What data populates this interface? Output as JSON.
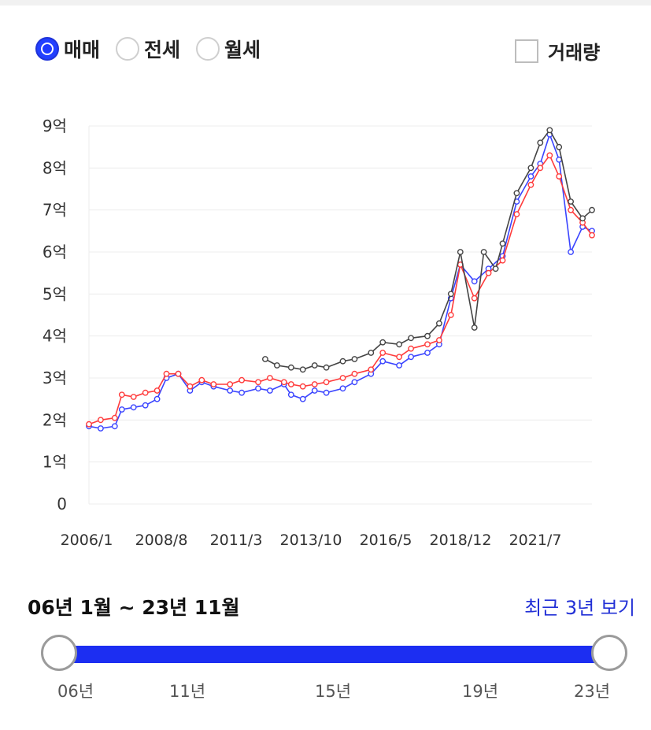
{
  "tabs": [
    {
      "label": "매매",
      "checked": true
    },
    {
      "label": "전세",
      "checked": false
    },
    {
      "label": "월세",
      "checked": false
    }
  ],
  "volume_label": "거래량",
  "range_label": "06년 1월 ~ 23년 11월",
  "recent_label": "최근 3년 보기",
  "slider_ticks": [
    "06년",
    "11년",
    "15년",
    "19년",
    "23년"
  ],
  "colors": {
    "blue": "#3a44ff",
    "red": "#ff3b3b",
    "black": "#444444",
    "accent": "#1c2ef2"
  },
  "chart_data": {
    "type": "line",
    "x_start": "2006-01",
    "x_end": "2023-11",
    "x_tick_labels": [
      "2006/1",
      "2008/8",
      "2011/3",
      "2013/10",
      "2016/5",
      "2018/12",
      "2021/7"
    ],
    "y_tick_labels": [
      "0",
      "1억",
      "2억",
      "3억",
      "4억",
      "5억",
      "6억",
      "7억",
      "8억",
      "9억"
    ],
    "ylim": [
      0,
      9
    ],
    "grid": true,
    "series": [
      {
        "color": "#3a44ff",
        "points": [
          [
            "2006-01",
            1.85
          ],
          [
            "2006-06",
            1.8
          ],
          [
            "2006-12",
            1.85
          ],
          [
            "2007-03",
            2.25
          ],
          [
            "2007-08",
            2.3
          ],
          [
            "2008-01",
            2.35
          ],
          [
            "2008-06",
            2.5
          ],
          [
            "2008-10",
            3.0
          ],
          [
            "2009-03",
            3.1
          ],
          [
            "2009-08",
            2.7
          ],
          [
            "2010-01",
            2.9
          ],
          [
            "2010-06",
            2.8
          ],
          [
            "2011-01",
            2.7
          ],
          [
            "2011-06",
            2.65
          ],
          [
            "2012-01",
            2.75
          ],
          [
            "2012-06",
            2.7
          ],
          [
            "2012-12",
            2.85
          ],
          [
            "2013-03",
            2.6
          ],
          [
            "2013-08",
            2.5
          ],
          [
            "2014-01",
            2.7
          ],
          [
            "2014-06",
            2.65
          ],
          [
            "2015-01",
            2.75
          ],
          [
            "2015-06",
            2.9
          ],
          [
            "2016-01",
            3.1
          ],
          [
            "2016-06",
            3.4
          ],
          [
            "2017-01",
            3.3
          ],
          [
            "2017-06",
            3.5
          ],
          [
            "2018-01",
            3.6
          ],
          [
            "2018-06",
            3.8
          ],
          [
            "2018-11",
            4.9
          ],
          [
            "2019-03",
            5.7
          ],
          [
            "2019-09",
            5.3
          ],
          [
            "2020-03",
            5.6
          ],
          [
            "2020-09",
            5.9
          ],
          [
            "2021-03",
            7.2
          ],
          [
            "2021-09",
            7.8
          ],
          [
            "2022-01",
            8.1
          ],
          [
            "2022-05",
            8.8
          ],
          [
            "2022-09",
            8.2
          ],
          [
            "2023-02",
            6.0
          ],
          [
            "2023-07",
            6.6
          ],
          [
            "2023-11",
            6.5
          ]
        ]
      },
      {
        "color": "#ff3b3b",
        "points": [
          [
            "2006-01",
            1.9
          ],
          [
            "2006-06",
            2.0
          ],
          [
            "2006-12",
            2.05
          ],
          [
            "2007-03",
            2.6
          ],
          [
            "2007-08",
            2.55
          ],
          [
            "2008-01",
            2.65
          ],
          [
            "2008-06",
            2.7
          ],
          [
            "2008-10",
            3.1
          ],
          [
            "2009-03",
            3.1
          ],
          [
            "2009-08",
            2.8
          ],
          [
            "2010-01",
            2.95
          ],
          [
            "2010-06",
            2.85
          ],
          [
            "2011-01",
            2.85
          ],
          [
            "2011-06",
            2.95
          ],
          [
            "2012-01",
            2.9
          ],
          [
            "2012-06",
            3.0
          ],
          [
            "2012-12",
            2.9
          ],
          [
            "2013-03",
            2.85
          ],
          [
            "2013-08",
            2.8
          ],
          [
            "2014-01",
            2.85
          ],
          [
            "2014-06",
            2.9
          ],
          [
            "2015-01",
            3.0
          ],
          [
            "2015-06",
            3.1
          ],
          [
            "2016-01",
            3.2
          ],
          [
            "2016-06",
            3.6
          ],
          [
            "2017-01",
            3.5
          ],
          [
            "2017-06",
            3.7
          ],
          [
            "2018-01",
            3.8
          ],
          [
            "2018-06",
            3.9
          ],
          [
            "2018-11",
            4.5
          ],
          [
            "2019-03",
            5.7
          ],
          [
            "2019-09",
            4.9
          ],
          [
            "2020-03",
            5.5
          ],
          [
            "2020-09",
            5.8
          ],
          [
            "2021-03",
            6.9
          ],
          [
            "2021-09",
            7.6
          ],
          [
            "2022-01",
            8.0
          ],
          [
            "2022-05",
            8.3
          ],
          [
            "2022-09",
            7.8
          ],
          [
            "2023-02",
            7.0
          ],
          [
            "2023-07",
            6.7
          ],
          [
            "2023-11",
            6.4
          ]
        ]
      },
      {
        "color": "#444444",
        "points": [
          [
            "2012-04",
            3.45
          ],
          [
            "2012-09",
            3.3
          ],
          [
            "2013-03",
            3.25
          ],
          [
            "2013-08",
            3.2
          ],
          [
            "2014-01",
            3.3
          ],
          [
            "2014-06",
            3.25
          ],
          [
            "2015-01",
            3.4
          ],
          [
            "2015-06",
            3.45
          ],
          [
            "2016-01",
            3.6
          ],
          [
            "2016-06",
            3.85
          ],
          [
            "2017-01",
            3.8
          ],
          [
            "2017-06",
            3.95
          ],
          [
            "2018-01",
            4.0
          ],
          [
            "2018-06",
            4.3
          ],
          [
            "2018-11",
            5.0
          ],
          [
            "2019-03",
            6.0
          ],
          [
            "2019-09",
            4.2
          ],
          [
            "2020-01",
            6.0
          ],
          [
            "2020-06",
            5.6
          ],
          [
            "2020-09",
            6.2
          ],
          [
            "2021-03",
            7.4
          ],
          [
            "2021-09",
            8.0
          ],
          [
            "2022-01",
            8.6
          ],
          [
            "2022-05",
            8.9
          ],
          [
            "2022-09",
            8.5
          ],
          [
            "2023-02",
            7.2
          ],
          [
            "2023-07",
            6.8
          ],
          [
            "2023-11",
            7.0
          ]
        ]
      }
    ]
  }
}
